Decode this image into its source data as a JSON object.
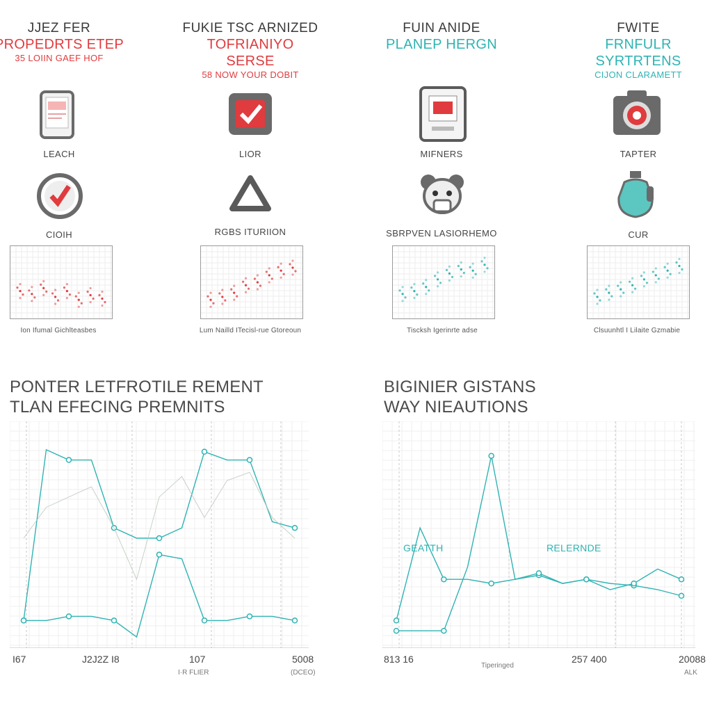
{
  "colors": {
    "red": "#e03b3e",
    "teal": "#2fb3b3",
    "gray": "#5a5a5a",
    "grid": "#dcdcdc"
  },
  "columns": [
    {
      "title": "JJEZ FER",
      "subtitle": "PROPEDRTS ETEP",
      "subtext": "35 LOIIN GAEF HOF",
      "accent": "red",
      "icon1": "phone-icon",
      "label1": "LEACH",
      "icon2": "check-circle-icon",
      "label2": "CIOIH",
      "caption": "Ion Ifumal Gichlteasbes"
    },
    {
      "title": "FUKIE TSC ARNIZED",
      "subtitle": "TOFRIANIYO SERSE",
      "subtext": "58 NOW YOUR DOBIT",
      "accent": "red",
      "icon1": "checkbox-icon",
      "label1": "LIOR",
      "icon2": "triangle-icon",
      "label2": "RGBS ITURIION",
      "caption": "Lum Nailld ITecisl-rue Gtoreoun"
    },
    {
      "title": "FUIN ANIDE",
      "subtitle": "PLANEP HERGN",
      "subtext": "",
      "accent": "teal",
      "icon1": "appliance-icon",
      "label1": "MIFNERS",
      "icon2": "bear-face-icon",
      "label2": "SBRPVEN LASIORHEMO",
      "caption": "Tiscksh Igerinrte adse"
    },
    {
      "title": "FWITE",
      "subtitle": "FRNFULR SYRTRTENS",
      "subtext": "CIJON CLARAMETT",
      "accent": "teal",
      "icon1": "camera-icon",
      "label1": "TAPTER",
      "icon2": "bottle-icon",
      "label2": "CUR",
      "caption": "Clsuunhtl I Lilaite Gzmabie"
    }
  ],
  "mini_charts": [
    {
      "accent": "red",
      "values": [
        0.35,
        0.3,
        0.4,
        0.25,
        0.35,
        0.2,
        0.28,
        0.22
      ]
    },
    {
      "accent": "red",
      "values": [
        0.2,
        0.25,
        0.32,
        0.45,
        0.5,
        0.62,
        0.7,
        0.75
      ]
    },
    {
      "accent": "teal",
      "values": [
        0.3,
        0.35,
        0.42,
        0.55,
        0.65,
        0.72,
        0.7,
        0.8
      ]
    },
    {
      "accent": "teal",
      "values": [
        0.25,
        0.32,
        0.38,
        0.45,
        0.55,
        0.62,
        0.7,
        0.78
      ]
    }
  ],
  "chart_data": [
    {
      "type": "line",
      "title_line1": "PONTER LETFROTILE REMENT",
      "title_line2": "TLAN EFECING PREMNITS",
      "xticks": [
        "I67",
        "J2J2Z I8",
        "107",
        "5008"
      ],
      "xsubticks": [
        "",
        "",
        "",
        "(DCEO)"
      ],
      "xsubticks_mid": "I·R FLIER",
      "series": [
        {
          "values": [
            0.1,
            0.93,
            0.88,
            0.88,
            0.55,
            0.5,
            0.5,
            0.55,
            0.92,
            0.88,
            0.88,
            0.58,
            0.55
          ]
        },
        {
          "values": [
            0.1,
            0.1,
            0.12,
            0.12,
            0.1,
            0.02,
            0.42,
            0.4,
            0.1,
            0.1,
            0.12,
            0.12,
            0.1
          ]
        },
        {
          "values": [
            0.5,
            0.65,
            0.7,
            0.75,
            0.55,
            0.3,
            0.7,
            0.8,
            0.6,
            0.78,
            0.82,
            0.6,
            0.5
          ]
        }
      ]
    },
    {
      "type": "line",
      "title_line1": "BIGINIER GISTANS",
      "title_line2": "WAY NIEAUTIONS",
      "annotations": [
        "GEATTH",
        "RELERNDE"
      ],
      "xticks": [
        "813 16",
        "",
        "257 400",
        "20088"
      ],
      "xsubticks": [
        "",
        "Tiperinged",
        "",
        "ALK"
      ],
      "series": [
        {
          "values": [
            0.1,
            0.55,
            0.3,
            0.3,
            0.28,
            0.3,
            0.32,
            0.28,
            0.3,
            0.28,
            0.27,
            0.25,
            0.22
          ]
        },
        {
          "values": [
            0.05,
            0.05,
            0.05,
            0.36,
            0.9,
            0.3,
            0.33,
            0.28,
            0.3,
            0.25,
            0.28,
            0.35,
            0.3
          ]
        }
      ]
    }
  ]
}
